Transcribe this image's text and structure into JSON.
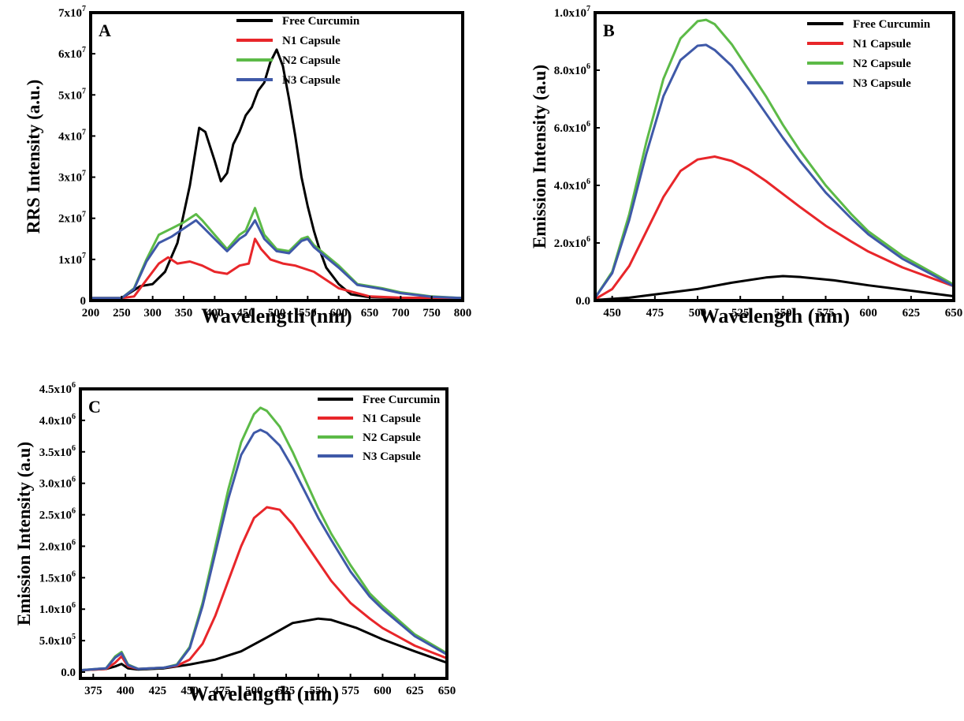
{
  "chart_data": [
    {
      "type": "line",
      "panel_label": "A",
      "xlabel": "Wavelength (nm)",
      "ylabel": "RRS Intensity (a.u.)",
      "xlim": [
        200,
        800
      ],
      "ylim": [
        0,
        70000000
      ],
      "x_ticks": [
        "200",
        "250",
        "300",
        "350",
        "400",
        "450",
        "500",
        "550",
        "600",
        "650",
        "700",
        "750",
        "800"
      ],
      "y_ticks": [
        {
          "base": "0",
          "exp": ""
        },
        {
          "base": "1x10",
          "exp": "7"
        },
        {
          "base": "2x10",
          "exp": "7"
        },
        {
          "base": "3x10",
          "exp": "7"
        },
        {
          "base": "4x10",
          "exp": "7"
        },
        {
          "base": "5x10",
          "exp": "7"
        },
        {
          "base": "6x10",
          "exp": "7"
        },
        {
          "base": "7x10",
          "exp": "7"
        }
      ],
      "legend": "top-right",
      "series": [
        {
          "name": "Free Curcumin",
          "color": "#000000",
          "x": [
            200,
            250,
            280,
            300,
            320,
            340,
            360,
            375,
            385,
            400,
            410,
            420,
            430,
            440,
            450,
            460,
            470,
            480,
            490,
            500,
            510,
            520,
            530,
            540,
            550,
            560,
            570,
            580,
            600,
            620,
            650,
            700,
            800
          ],
          "y": [
            600000,
            600000,
            3500000,
            4000000,
            7000000,
            14000000,
            28000000,
            42000000,
            41000000,
            34000000,
            29000000,
            31000000,
            38000000,
            41000000,
            45000000,
            47000000,
            51000000,
            53000000,
            58000000,
            61000000,
            57000000,
            49000000,
            40000000,
            30000000,
            23000000,
            17000000,
            12000000,
            8000000,
            4000000,
            1500000,
            800000,
            600000,
            600000
          ]
        },
        {
          "name": "N1 Capsule",
          "color": "#e8262a",
          "x": [
            200,
            250,
            270,
            290,
            310,
            325,
            340,
            360,
            380,
            400,
            420,
            440,
            455,
            465,
            475,
            490,
            510,
            530,
            560,
            600,
            650,
            700,
            800
          ],
          "y": [
            600000,
            600000,
            1000000,
            5000000,
            9000000,
            10500000,
            9000000,
            9500000,
            8500000,
            7000000,
            6500000,
            8500000,
            9000000,
            15000000,
            12500000,
            10000000,
            9000000,
            8500000,
            7000000,
            3000000,
            1000000,
            700000,
            600000
          ]
        },
        {
          "name": "N2 Capsule",
          "color": "#5cba47",
          "x": [
            200,
            250,
            270,
            290,
            310,
            330,
            350,
            370,
            380,
            400,
            420,
            440,
            450,
            465,
            480,
            500,
            520,
            540,
            550,
            560,
            580,
            600,
            630,
            670,
            700,
            750,
            800
          ],
          "y": [
            600000,
            600000,
            3000000,
            10000000,
            16000000,
            17500000,
            19000000,
            21000000,
            19500000,
            16000000,
            12500000,
            16000000,
            17000000,
            22500000,
            16000000,
            12500000,
            12000000,
            15000000,
            15500000,
            13500000,
            11000000,
            8500000,
            4000000,
            3000000,
            2000000,
            1000000,
            600000
          ]
        },
        {
          "name": "N3 Capsule",
          "color": "#3f59a8",
          "x": [
            200,
            250,
            270,
            290,
            310,
            330,
            350,
            370,
            380,
            400,
            420,
            440,
            450,
            465,
            480,
            500,
            520,
            540,
            550,
            560,
            580,
            600,
            630,
            670,
            700,
            750,
            800
          ],
          "y": [
            600000,
            600000,
            2800000,
            9500000,
            14000000,
            15500000,
            17500000,
            19500000,
            18000000,
            15000000,
            12000000,
            15000000,
            16000000,
            19500000,
            15000000,
            12000000,
            11500000,
            14500000,
            15000000,
            13000000,
            10500000,
            8000000,
            3800000,
            2800000,
            1800000,
            900000,
            600000
          ]
        }
      ]
    },
    {
      "type": "line",
      "panel_label": "B",
      "xlabel": "Wavelength (nm)",
      "ylabel": "Emission  Intensity (a.u)",
      "xlim": [
        440,
        650
      ],
      "ylim": [
        0,
        10000000
      ],
      "x_ticks": [
        "450",
        "475",
        "500",
        "525",
        "550",
        "575",
        "600",
        "625",
        "650"
      ],
      "y_ticks": [
        {
          "base": "0.0",
          "exp": ""
        },
        {
          "base": "2.0x10",
          "exp": "6"
        },
        {
          "base": "4.0x10",
          "exp": "6"
        },
        {
          "base": "6.0x10",
          "exp": "6"
        },
        {
          "base": "8.0x10",
          "exp": "6"
        },
        {
          "base": "1.0x10",
          "exp": "7"
        }
      ],
      "legend": "top-right",
      "series": [
        {
          "name": "Free Curcumin",
          "color": "#000000",
          "x": [
            440,
            460,
            480,
            500,
            520,
            540,
            550,
            560,
            580,
            600,
            620,
            650
          ],
          "y": [
            20000,
            100000,
            250000,
            400000,
            620000,
            800000,
            850000,
            820000,
            700000,
            530000,
            380000,
            150000
          ]
        },
        {
          "name": "N1 Capsule",
          "color": "#e8262a",
          "x": [
            440,
            450,
            460,
            470,
            480,
            490,
            500,
            510,
            520,
            530,
            540,
            550,
            560,
            575,
            590,
            600,
            620,
            650
          ],
          "y": [
            50000,
            400000,
            1200000,
            2400000,
            3600000,
            4500000,
            4900000,
            5000000,
            4850000,
            4550000,
            4150000,
            3700000,
            3250000,
            2600000,
            2050000,
            1700000,
            1150000,
            500000
          ]
        },
        {
          "name": "N2 Capsule",
          "color": "#5cba47",
          "x": [
            440,
            450,
            460,
            470,
            480,
            490,
            500,
            505,
            510,
            520,
            530,
            540,
            550,
            560,
            575,
            590,
            600,
            620,
            650
          ],
          "y": [
            100000,
            1000000,
            3000000,
            5500000,
            7700000,
            9100000,
            9700000,
            9750000,
            9600000,
            8900000,
            8000000,
            7100000,
            6100000,
            5200000,
            4000000,
            3000000,
            2400000,
            1550000,
            550000
          ]
        },
        {
          "name": "N3 Capsule",
          "color": "#3f59a8",
          "x": [
            440,
            450,
            460,
            470,
            480,
            490,
            500,
            505,
            510,
            520,
            530,
            540,
            550,
            560,
            575,
            590,
            600,
            620,
            650
          ],
          "y": [
            100000,
            950000,
            2800000,
            5100000,
            7100000,
            8350000,
            8850000,
            8880000,
            8700000,
            8150000,
            7350000,
            6500000,
            5650000,
            4850000,
            3750000,
            2850000,
            2300000,
            1450000,
            500000
          ]
        }
      ]
    },
    {
      "type": "line",
      "panel_label": "C",
      "xlabel": "Wavelength (nm)",
      "ylabel": "Emission Intensity (a.u)",
      "xlim": [
        365,
        650
      ],
      "ylim": [
        -100000,
        4500000
      ],
      "x_ticks": [
        "375",
        "400",
        "425",
        "450",
        "475",
        "500",
        "525",
        "550",
        "575",
        "600",
        "625",
        "650"
      ],
      "y_ticks": [
        {
          "base": "0.0",
          "exp": ""
        },
        {
          "base": "5.0x10",
          "exp": "5"
        },
        {
          "base": "1.0x10",
          "exp": "6"
        },
        {
          "base": "1.5x10",
          "exp": "6"
        },
        {
          "base": "2.0x10",
          "exp": "6"
        },
        {
          "base": "2.5x10",
          "exp": "6"
        },
        {
          "base": "3.0x10",
          "exp": "6"
        },
        {
          "base": "3.5x10",
          "exp": "6"
        },
        {
          "base": "4.0x10",
          "exp": "6"
        },
        {
          "base": "4.5x10",
          "exp": "6"
        }
      ],
      "legend": "top-right",
      "series": [
        {
          "name": "Free Curcumin",
          "color": "#000000",
          "x": [
            365,
            385,
            392,
            397,
            402,
            410,
            430,
            450,
            470,
            490,
            510,
            530,
            550,
            560,
            580,
            600,
            625,
            650
          ],
          "y": [
            30000,
            50000,
            90000,
            130000,
            60000,
            40000,
            60000,
            120000,
            200000,
            330000,
            550000,
            780000,
            850000,
            830000,
            700000,
            520000,
            330000,
            150000
          ]
        },
        {
          "name": "N1 Capsule",
          "color": "#e8262a",
          "x": [
            365,
            385,
            392,
            397,
            402,
            410,
            430,
            440,
            450,
            460,
            470,
            480,
            490,
            500,
            510,
            520,
            530,
            540,
            550,
            560,
            575,
            590,
            600,
            625,
            650
          ],
          "y": [
            30000,
            50000,
            150000,
            250000,
            90000,
            50000,
            70000,
            100000,
            200000,
            450000,
            900000,
            1450000,
            2000000,
            2450000,
            2620000,
            2580000,
            2350000,
            2050000,
            1750000,
            1450000,
            1100000,
            850000,
            700000,
            420000,
            220000
          ]
        },
        {
          "name": "N2 Capsule",
          "color": "#5cba47",
          "x": [
            365,
            385,
            392,
            397,
            402,
            410,
            430,
            440,
            450,
            460,
            470,
            480,
            490,
            500,
            505,
            510,
            520,
            530,
            540,
            550,
            560,
            575,
            590,
            600,
            625,
            650
          ],
          "y": [
            30000,
            60000,
            250000,
            320000,
            120000,
            50000,
            70000,
            120000,
            400000,
            1100000,
            2000000,
            2900000,
            3650000,
            4100000,
            4200000,
            4150000,
            3900000,
            3500000,
            3050000,
            2600000,
            2200000,
            1700000,
            1250000,
            1050000,
            600000,
            300000
          ]
        },
        {
          "name": "N3 Capsule",
          "color": "#3f59a8",
          "x": [
            365,
            385,
            392,
            397,
            402,
            410,
            430,
            440,
            450,
            460,
            470,
            480,
            490,
            500,
            505,
            510,
            520,
            530,
            540,
            550,
            560,
            575,
            590,
            600,
            625,
            650
          ],
          "y": [
            30000,
            60000,
            230000,
            300000,
            110000,
            50000,
            70000,
            110000,
            380000,
            1050000,
            1900000,
            2750000,
            3450000,
            3800000,
            3850000,
            3800000,
            3600000,
            3250000,
            2850000,
            2450000,
            2100000,
            1600000,
            1200000,
            1000000,
            570000,
            280000
          ]
        }
      ]
    }
  ]
}
